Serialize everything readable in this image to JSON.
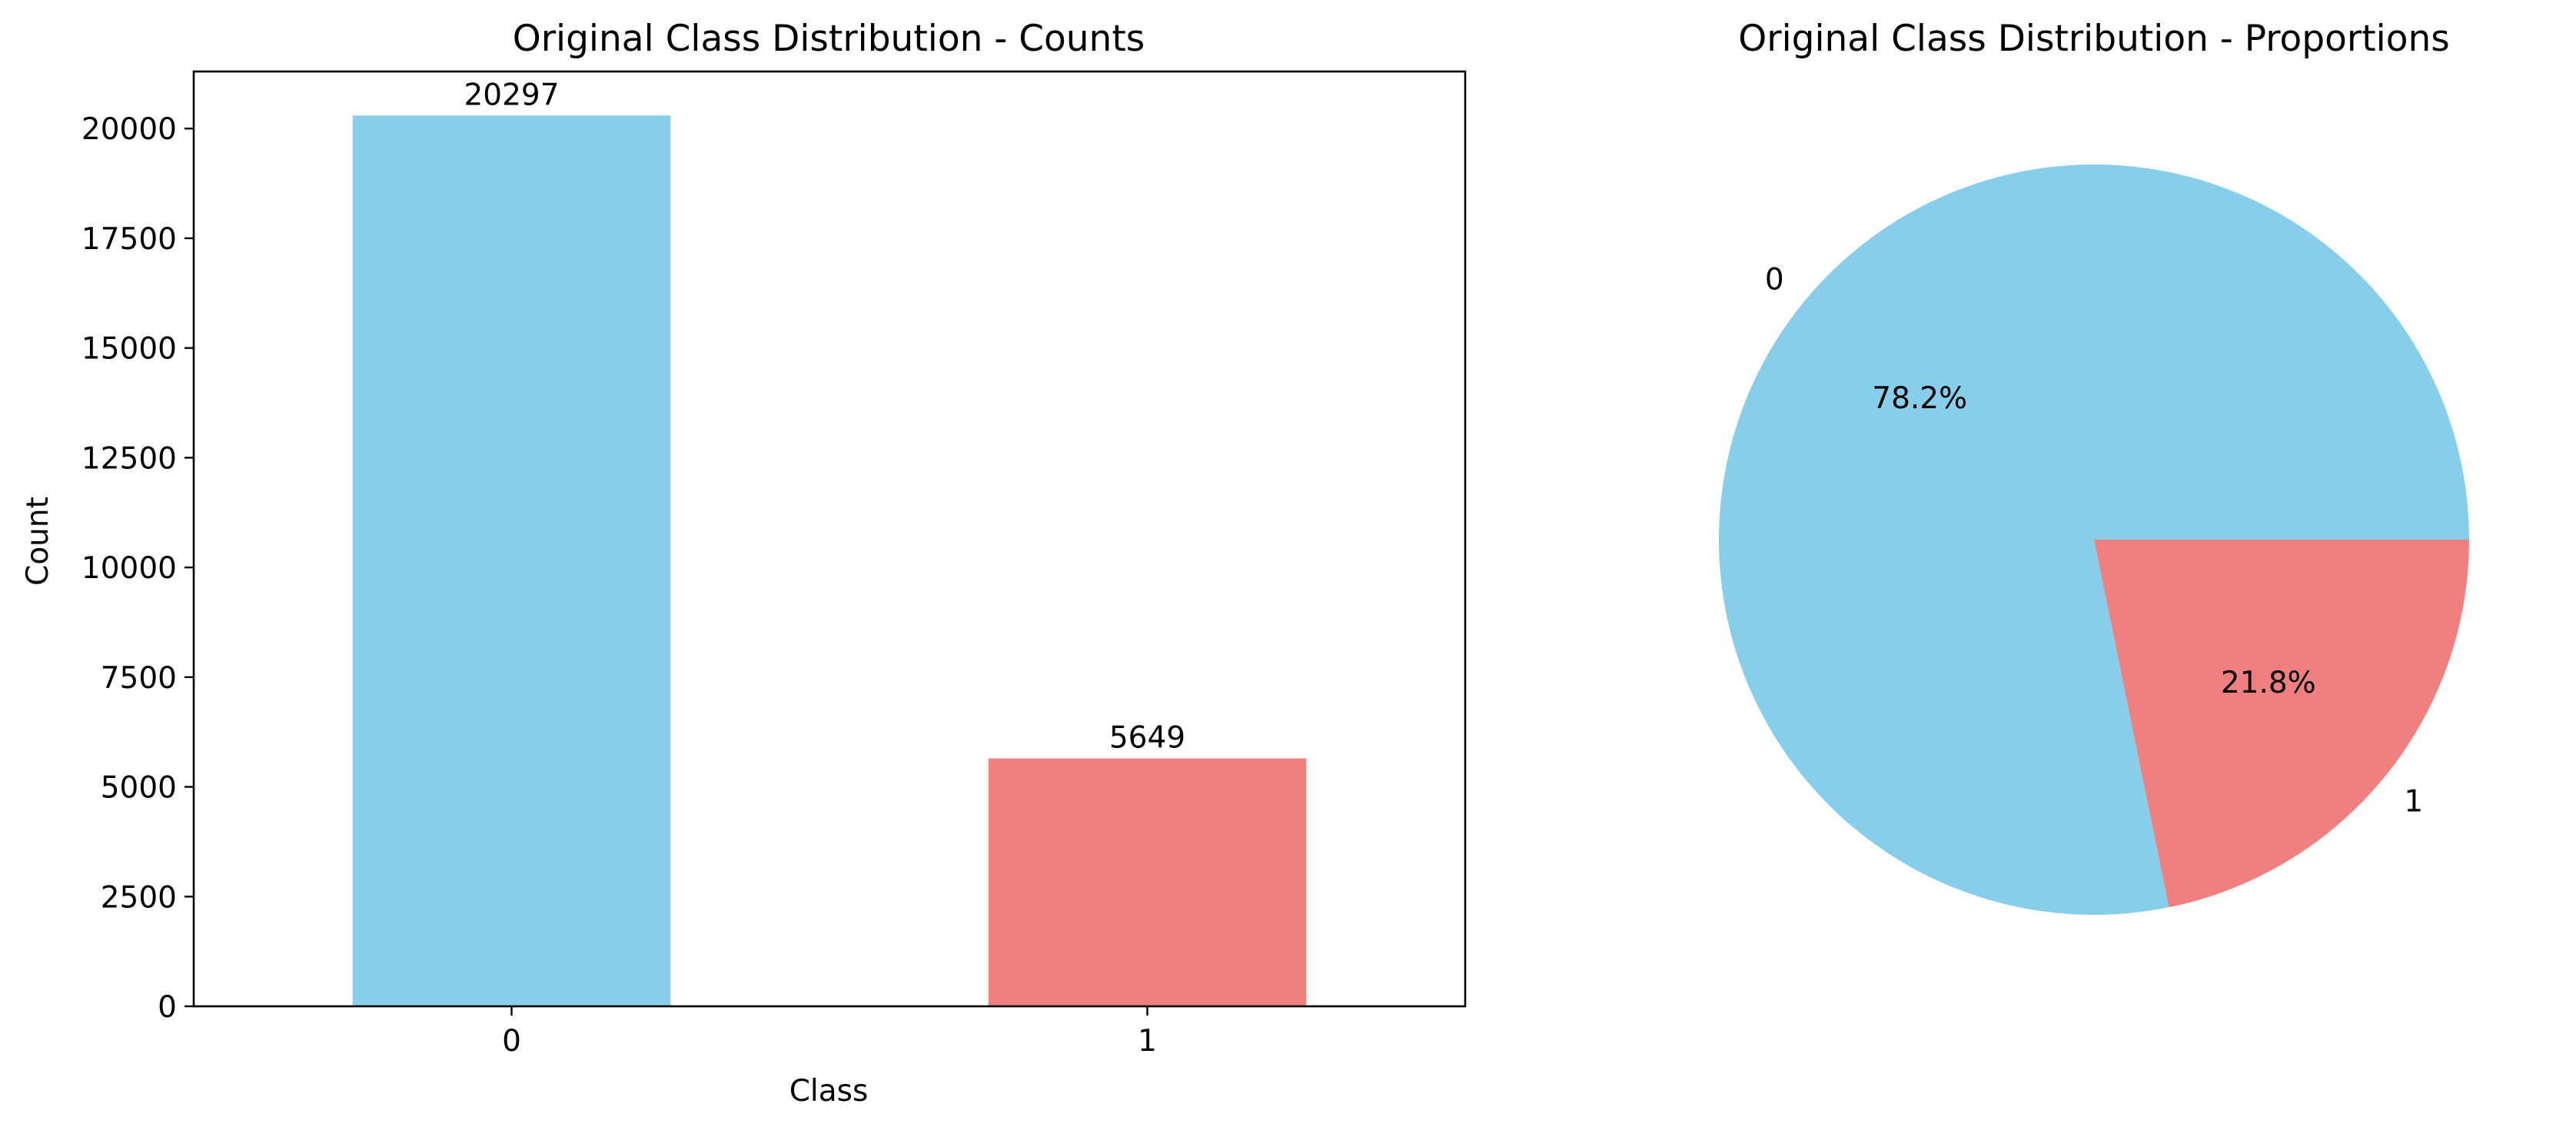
{
  "chart_data": [
    {
      "type": "bar",
      "title": "Original Class Distribution - Counts",
      "xlabel": "Class",
      "ylabel": "Count",
      "categories": [
        "0",
        "1"
      ],
      "values": [
        20297,
        5649
      ],
      "value_labels": [
        "20297",
        "5649"
      ],
      "colors": [
        "#87CEEB",
        "#F08080"
      ],
      "ylim": [
        0,
        21300
      ],
      "yticks": [
        0,
        2500,
        5000,
        7500,
        10000,
        12500,
        15000,
        17500,
        20000
      ],
      "ytick_labels": [
        "0",
        "2500",
        "5000",
        "7500",
        "10000",
        "12500",
        "15000",
        "17500",
        "20000"
      ],
      "grid": false
    },
    {
      "type": "pie",
      "title": "Original Class Distribution - Proportions",
      "labels": [
        "0",
        "1"
      ],
      "values": [
        78.2,
        21.8
      ],
      "pct_labels": [
        "78.2%",
        "21.8%"
      ],
      "colors": [
        "#87CEEB",
        "#F08080"
      ]
    }
  ]
}
